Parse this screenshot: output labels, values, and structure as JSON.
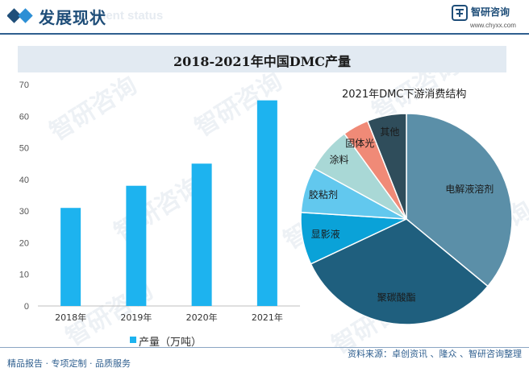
{
  "header": {
    "title": "发展现状",
    "subtitle": "ment status",
    "brand_name": "智研咨询",
    "brand_url": "www.chyxx.com"
  },
  "colors": {
    "bar": "#1db3ef",
    "pie": [
      "#5b8fa8",
      "#1f5f7e",
      "#0aa2d8",
      "#62c8ee",
      "#a9d8d6",
      "#f08a77",
      "#2f4d5b"
    ],
    "watermark": "#dfe6ee"
  },
  "watermark": {
    "text": "智研咨询"
  },
  "chart_data": [
    {
      "type": "bar",
      "title": "2018-2021年中国DMC产量",
      "categories": [
        "2018年",
        "2019年",
        "2020年",
        "2021年"
      ],
      "series": [
        {
          "name": "产量（万吨）",
          "values": [
            31,
            38,
            45,
            65
          ]
        }
      ],
      "ylim": [
        0,
        70
      ],
      "yticks": [
        0,
        10,
        20,
        30,
        40,
        50,
        60,
        70
      ],
      "xlabel": "",
      "ylabel": "",
      "grid": false,
      "legend": "bottom"
    },
    {
      "type": "pie",
      "title": "2021年DMC下游消费结构",
      "labels": [
        "电解液溶剂",
        "聚碳酸酯",
        "显影液",
        "胶粘剂",
        "涂料",
        "固体光气",
        "其他"
      ],
      "values": [
        36,
        32,
        8,
        7,
        7,
        4,
        6
      ],
      "legend": "none"
    }
  ],
  "footer": {
    "left": "精品报告 · 专项定制 · 品质服务",
    "source": "资料来源：卓创资讯 、隆众 、智研咨询整理"
  }
}
